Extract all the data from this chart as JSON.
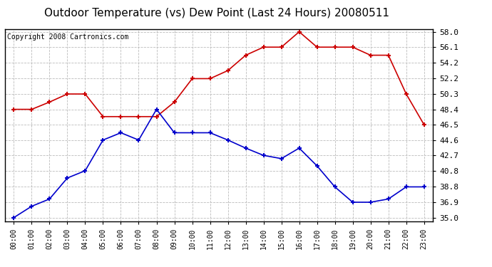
{
  "title": "Outdoor Temperature (vs) Dew Point (Last 24 Hours) 20080511",
  "copyright": "Copyright 2008 Cartronics.com",
  "x_labels": [
    "00:00",
    "01:00",
    "02:00",
    "03:00",
    "04:00",
    "05:00",
    "06:00",
    "07:00",
    "08:00",
    "09:00",
    "10:00",
    "11:00",
    "12:00",
    "13:00",
    "14:00",
    "15:00",
    "16:00",
    "17:00",
    "18:00",
    "19:00",
    "20:00",
    "21:00",
    "22:00",
    "23:00"
  ],
  "temp_data": [
    48.4,
    48.4,
    49.3,
    50.3,
    50.3,
    47.5,
    47.5,
    47.5,
    47.5,
    49.3,
    52.2,
    52.2,
    53.2,
    55.1,
    56.1,
    56.1,
    58.0,
    56.1,
    56.1,
    56.1,
    55.1,
    55.1,
    50.3,
    46.5
  ],
  "dew_data": [
    35.0,
    36.4,
    37.3,
    39.9,
    40.8,
    44.6,
    45.5,
    44.6,
    48.4,
    45.5,
    45.5,
    45.5,
    44.6,
    43.6,
    42.7,
    42.3,
    43.6,
    41.4,
    38.8,
    36.9,
    36.9,
    37.3,
    38.8,
    38.8
  ],
  "ylim": [
    35.0,
    58.0
  ],
  "yticks": [
    35.0,
    36.9,
    38.8,
    40.8,
    42.7,
    44.6,
    46.5,
    48.4,
    50.3,
    52.2,
    54.2,
    56.1,
    58.0
  ],
  "temp_color": "#cc0000",
  "dew_color": "#0000cc",
  "bg_color": "#ffffff",
  "plot_bg_color": "#ffffff",
  "grid_color": "#bbbbbb",
  "title_fontsize": 11,
  "copyright_fontsize": 7,
  "tick_fontsize": 8,
  "xtick_fontsize": 7
}
